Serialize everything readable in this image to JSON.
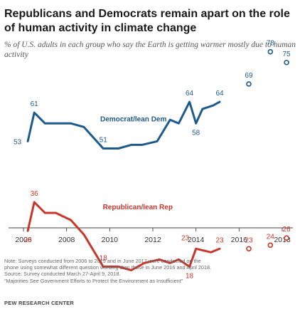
{
  "title": "Republicans and Democrats remain apart on the role of human activity in climate change",
  "subtitle": "% of U.S. adults in each group who say the Earth is getting warmer mostly due to human activity",
  "notes": {
    "line1": "Note: Surveys conducted from 2006 to 2015 and in June 2017 were conducted on the",
    "line2": "phone using somewhat different question wording than those in June 2016 and April 2018.",
    "line3": "Source: Survey conducted March 27-April 9, 2018.",
    "line4": "“Majorities See Government Efforts to Protect the Environment as Insufficient”"
  },
  "source_org": "PEW RESEARCH CENTER",
  "colors": {
    "dem": "#1f5a8c",
    "rep": "#c9362b",
    "axis": "#444444",
    "tick": "#333333"
  },
  "chart_data": {
    "type": "line",
    "xlim": [
      2006,
      2018
    ],
    "ylim": [
      0,
      100
    ],
    "x_ticks": [
      "2006",
      "2008",
      "2010",
      "2012",
      "2014",
      "2016",
      "2018"
    ],
    "series": [
      {
        "name": "Democrat/lean Dem",
        "color": "#1f5a8c",
        "line_points": [
          {
            "x": 2006.2,
            "y": 53
          },
          {
            "x": 2006.5,
            "y": 61
          },
          {
            "x": 2007.0,
            "y": 58
          },
          {
            "x": 2007.5,
            "y": 58
          },
          {
            "x": 2008.2,
            "y": 58
          },
          {
            "x": 2008.8,
            "y": 57
          },
          {
            "x": 2009.7,
            "y": 51
          },
          {
            "x": 2010.4,
            "y": 51
          },
          {
            "x": 2011.0,
            "y": 52
          },
          {
            "x": 2011.5,
            "y": 52
          },
          {
            "x": 2012.2,
            "y": 53
          },
          {
            "x": 2012.8,
            "y": 59
          },
          {
            "x": 2013.2,
            "y": 58
          },
          {
            "x": 2013.7,
            "y": 64
          },
          {
            "x": 2014.0,
            "y": 58
          },
          {
            "x": 2014.3,
            "y": 62
          },
          {
            "x": 2014.8,
            "y": 63
          },
          {
            "x": 2015.1,
            "y": 64
          }
        ],
        "open_points": [
          {
            "x": 2016.45,
            "y": 69
          },
          {
            "x": 2017.45,
            "y": 78
          },
          {
            "x": 2018.2,
            "y": 75
          }
        ],
        "labels": [
          {
            "x": 2006.2,
            "y": 53,
            "text": "53",
            "pos": "left"
          },
          {
            "x": 2006.5,
            "y": 61,
            "text": "61",
            "pos": "above"
          },
          {
            "x": 2009.7,
            "y": 51,
            "text": "51",
            "pos": "above"
          },
          {
            "x": 2013.7,
            "y": 64,
            "text": "64",
            "pos": "above"
          },
          {
            "x": 2014.0,
            "y": 58,
            "text": "58",
            "pos": "below"
          },
          {
            "x": 2015.1,
            "y": 64,
            "text": "64",
            "pos": "above"
          },
          {
            "x": 2016.45,
            "y": 69,
            "text": "69",
            "pos": "above"
          },
          {
            "x": 2017.45,
            "y": 78,
            "text": "78",
            "pos": "above"
          },
          {
            "x": 2018.2,
            "y": 75,
            "text": "75",
            "pos": "above"
          }
        ],
        "series_label": {
          "x": 2011.1,
          "y": 58.5,
          "text": "Democrat/lean Dem"
        }
      },
      {
        "name": "Republican/lean Rep",
        "color": "#c9362b",
        "line_points": [
          {
            "x": 2006.2,
            "y": 28
          },
          {
            "x": 2006.5,
            "y": 36
          },
          {
            "x": 2007.0,
            "y": 33
          },
          {
            "x": 2007.5,
            "y": 33
          },
          {
            "x": 2008.2,
            "y": 31
          },
          {
            "x": 2008.8,
            "y": 27
          },
          {
            "x": 2009.7,
            "y": 18
          },
          {
            "x": 2010.4,
            "y": 18
          },
          {
            "x": 2011.0,
            "y": 17
          },
          {
            "x": 2011.6,
            "y": 19
          },
          {
            "x": 2012.3,
            "y": 20
          },
          {
            "x": 2012.8,
            "y": 19
          },
          {
            "x": 2013.2,
            "y": 20
          },
          {
            "x": 2013.7,
            "y": 18
          },
          {
            "x": 2014.0,
            "y": 23
          },
          {
            "x": 2014.7,
            "y": 22
          },
          {
            "x": 2015.1,
            "y": 23
          }
        ],
        "open_points": [
          {
            "x": 2016.45,
            "y": 23
          },
          {
            "x": 2017.45,
            "y": 24
          },
          {
            "x": 2018.2,
            "y": 26
          }
        ],
        "labels": [
          {
            "x": 2006.2,
            "y": 28,
            "text": "28",
            "pos": "below"
          },
          {
            "x": 2006.5,
            "y": 36,
            "text": "36",
            "pos": "above"
          },
          {
            "x": 2009.7,
            "y": 18,
            "text": "18",
            "pos": "above"
          },
          {
            "x": 2013.5,
            "y": 23,
            "text": "23",
            "pos": "above-plain"
          },
          {
            "x": 2013.7,
            "y": 18,
            "text": "18",
            "pos": "below"
          },
          {
            "x": 2015.1,
            "y": 23,
            "text": "23",
            "pos": "above"
          },
          {
            "x": 2016.45,
            "y": 23,
            "text": "23",
            "pos": "above"
          },
          {
            "x": 2017.45,
            "y": 24,
            "text": "24",
            "pos": "above"
          },
          {
            "x": 2018.2,
            "y": 26,
            "text": "26",
            "pos": "above"
          }
        ],
        "series_label": {
          "x": 2011.3,
          "y": 34,
          "text": "Republican/lean Rep"
        }
      }
    ]
  }
}
